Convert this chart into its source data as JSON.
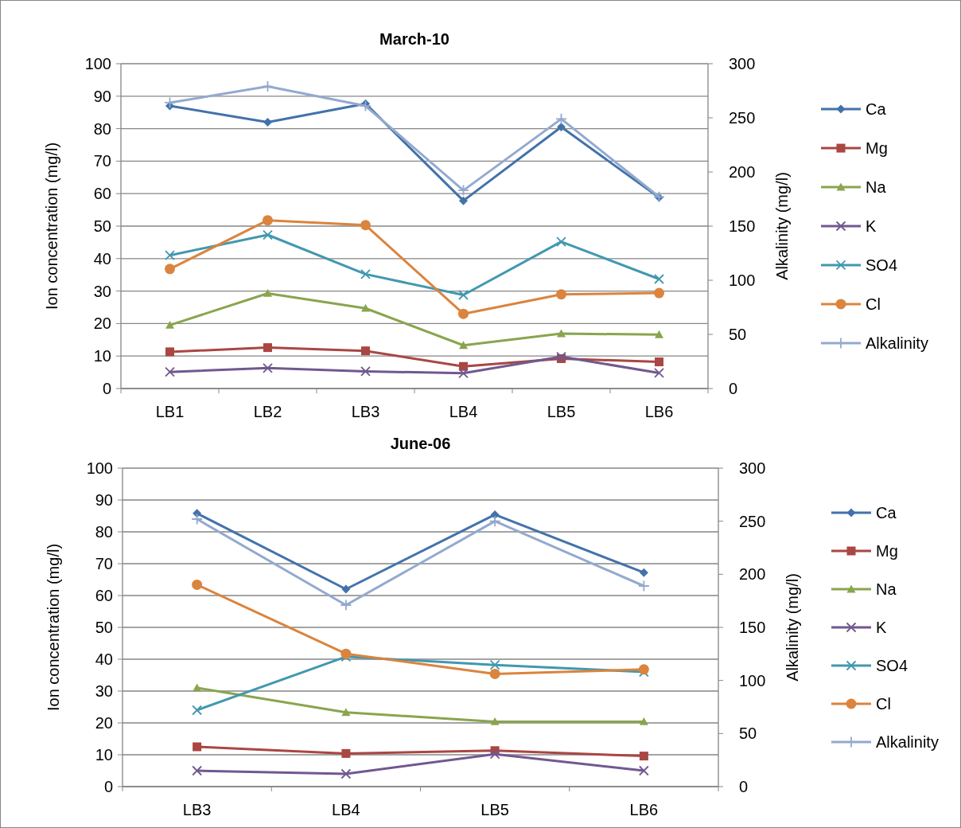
{
  "chart_data": [
    {
      "type": "line",
      "title": "March-10",
      "ylabel": "Ion concentration (mg/l)",
      "y2label": "Alkalinity (mg/l)",
      "categories": [
        "LB1",
        "LB2",
        "LB3",
        "LB4",
        "LB5",
        "LB6"
      ],
      "ylim": [
        0,
        100
      ],
      "yticks": [
        0,
        10,
        20,
        30,
        40,
        50,
        60,
        70,
        80,
        90,
        100
      ],
      "y2lim": [
        0,
        300
      ],
      "y2ticks": [
        0,
        50,
        100,
        150,
        200,
        250,
        300
      ],
      "grid": "y",
      "legend": "right",
      "line_style": "solid",
      "series": [
        {
          "name": "Ca",
          "color": "#4372aa",
          "marker": "diamond",
          "values": [
            87,
            82,
            87.7,
            57.8,
            80.5,
            58.8
          ]
        },
        {
          "name": "Mg",
          "color": "#aa4643",
          "marker": "square",
          "values": [
            11.3,
            12.6,
            11.6,
            6.8,
            9.2,
            8.2
          ]
        },
        {
          "name": "Na",
          "color": "#89a54e",
          "marker": "triangle",
          "values": [
            19.5,
            29.3,
            24.7,
            13.3,
            16.9,
            16.6
          ]
        },
        {
          "name": "K",
          "color": "#71588f",
          "marker": "cross",
          "values": [
            5.1,
            6.3,
            5.3,
            4.7,
            9.8,
            4.8
          ]
        },
        {
          "name": "SO4",
          "color": "#4198af",
          "marker": "cross",
          "values": [
            41,
            47.3,
            35.2,
            28.8,
            45.2,
            33.7
          ]
        },
        {
          "name": "Cl",
          "color": "#db843d",
          "marker": "circle",
          "values": [
            36.8,
            51.8,
            50.3,
            23,
            29,
            29.4
          ]
        },
        {
          "name": "Alkalinity",
          "color": "#93a9cf",
          "marker": "plus",
          "axis": "y2",
          "values": [
            264,
            279,
            261,
            183,
            249,
            177
          ]
        }
      ]
    },
    {
      "type": "line",
      "title": "June-06",
      "ylabel": "Ion concentration (mg/l)",
      "y2label": "Alkalinity (mg/l)",
      "categories": [
        "LB3",
        "LB4",
        "LB5",
        "LB6"
      ],
      "ylim": [
        0,
        100
      ],
      "yticks": [
        0,
        10,
        20,
        30,
        40,
        50,
        60,
        70,
        80,
        90,
        100
      ],
      "y2lim": [
        0,
        300
      ],
      "y2ticks": [
        0,
        50,
        100,
        150,
        200,
        250,
        300
      ],
      "grid": "y",
      "legend": "right",
      "line_style": "solid",
      "series": [
        {
          "name": "Ca",
          "color": "#4372aa",
          "marker": "diamond",
          "values": [
            85.8,
            62,
            85.4,
            67.2
          ]
        },
        {
          "name": "Mg",
          "color": "#aa4643",
          "marker": "square",
          "values": [
            12.5,
            10.4,
            11.3,
            9.6
          ]
        },
        {
          "name": "Na",
          "color": "#89a54e",
          "marker": "triangle",
          "values": [
            31,
            23.3,
            20.4,
            20.4
          ]
        },
        {
          "name": "K",
          "color": "#71588f",
          "marker": "cross",
          "values": [
            5,
            4,
            10.2,
            5
          ]
        },
        {
          "name": "SO4",
          "color": "#4198af",
          "marker": "cross",
          "values": [
            24,
            40.8,
            38.2,
            36
          ]
        },
        {
          "name": "Cl",
          "color": "#db843d",
          "marker": "circle",
          "values": [
            63.4,
            41.7,
            35.4,
            36.8
          ]
        },
        {
          "name": "Alkalinity",
          "color": "#93a9cf",
          "marker": "plus",
          "axis": "y2",
          "values": [
            252,
            171,
            250,
            189
          ]
        }
      ]
    }
  ]
}
